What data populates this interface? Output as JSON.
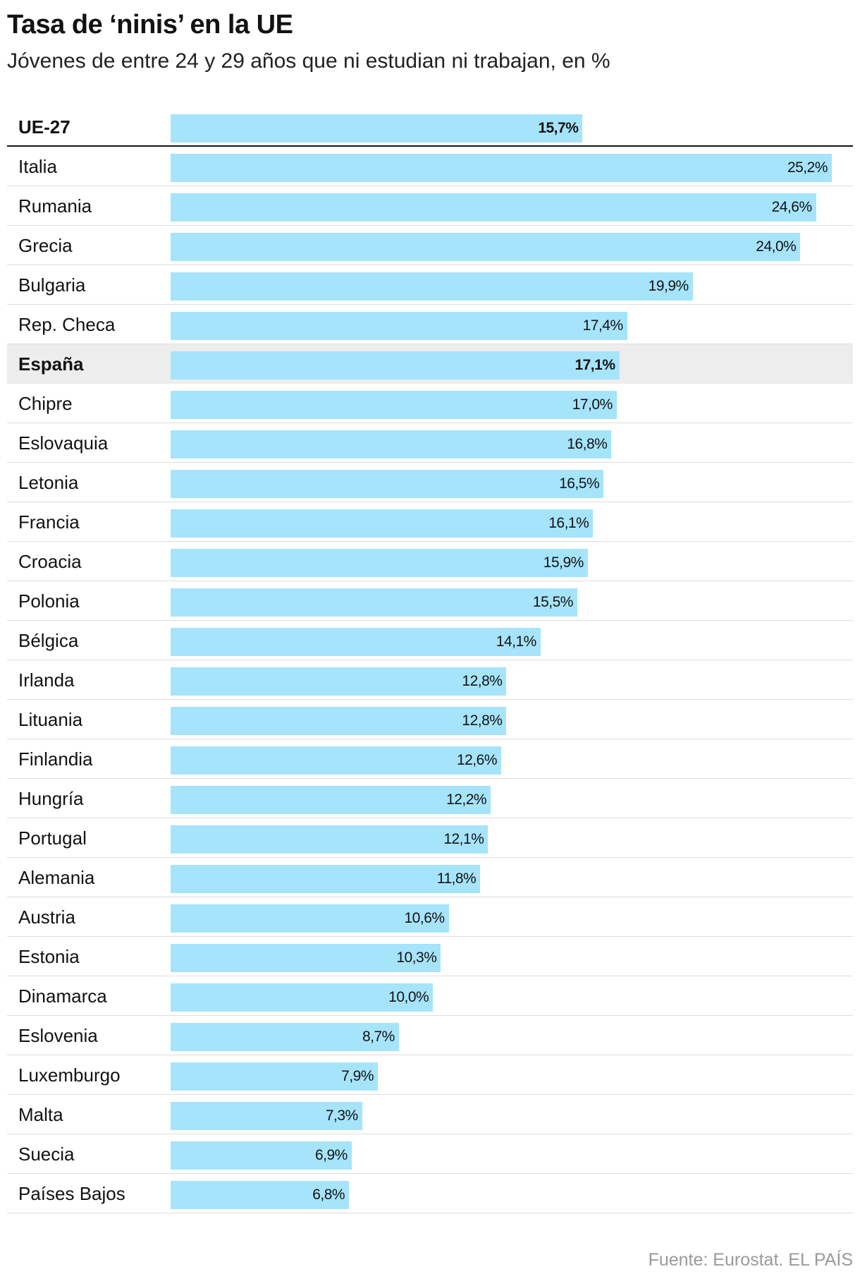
{
  "chart_data": {
    "type": "bar",
    "orientation": "horizontal",
    "title": "Tasa de ‘ninis’ en la UE",
    "subtitle": "Jóvenes de entre 24 y 29 años que ni estudian ni trabajan, en %",
    "source": "Fuente: Eurostat. EL PAÍS",
    "xlim": [
      0,
      25.2
    ],
    "grid": false,
    "colors": {
      "bar": "#a6e4fc",
      "highlight_row": "#ededed"
    },
    "rows": [
      {
        "label": "UE-27",
        "value": 15.7,
        "display": "15,7%",
        "style": "average"
      },
      {
        "label": "Italia",
        "value": 25.2,
        "display": "25,2%"
      },
      {
        "label": "Rumania",
        "value": 24.6,
        "display": "24,6%"
      },
      {
        "label": "Grecia",
        "value": 24.0,
        "display": "24,0%"
      },
      {
        "label": "Bulgaria",
        "value": 19.9,
        "display": "19,9%"
      },
      {
        "label": "Rep. Checa",
        "value": 17.4,
        "display": "17,4%"
      },
      {
        "label": "España",
        "value": 17.1,
        "display": "17,1%",
        "style": "highlight"
      },
      {
        "label": "Chipre",
        "value": 17.0,
        "display": "17,0%"
      },
      {
        "label": "Eslovaquia",
        "value": 16.8,
        "display": "16,8%"
      },
      {
        "label": "Letonia",
        "value": 16.5,
        "display": "16,5%"
      },
      {
        "label": "Francia",
        "value": 16.1,
        "display": "16,1%"
      },
      {
        "label": "Croacia",
        "value": 15.9,
        "display": "15,9%"
      },
      {
        "label": "Polonia",
        "value": 15.5,
        "display": "15,5%"
      },
      {
        "label": "Bélgica",
        "value": 14.1,
        "display": "14,1%"
      },
      {
        "label": "Irlanda",
        "value": 12.8,
        "display": "12,8%"
      },
      {
        "label": "Lituania",
        "value": 12.8,
        "display": "12,8%"
      },
      {
        "label": "Finlandia",
        "value": 12.6,
        "display": "12,6%"
      },
      {
        "label": "Hungría",
        "value": 12.2,
        "display": "12,2%"
      },
      {
        "label": "Portugal",
        "value": 12.1,
        "display": "12,1%"
      },
      {
        "label": "Alemania",
        "value": 11.8,
        "display": "11,8%"
      },
      {
        "label": "Austria",
        "value": 10.6,
        "display": "10,6%"
      },
      {
        "label": "Estonia",
        "value": 10.3,
        "display": "10,3%"
      },
      {
        "label": "Dinamarca",
        "value": 10.0,
        "display": "10,0%"
      },
      {
        "label": "Eslovenia",
        "value": 8.7,
        "display": "8,7%"
      },
      {
        "label": "Luxemburgo",
        "value": 7.9,
        "display": "7,9%"
      },
      {
        "label": "Malta",
        "value": 7.3,
        "display": "7,3%"
      },
      {
        "label": "Suecia",
        "value": 6.9,
        "display": "6,9%"
      },
      {
        "label": "Países Bajos",
        "value": 6.8,
        "display": "6,8%"
      }
    ]
  }
}
